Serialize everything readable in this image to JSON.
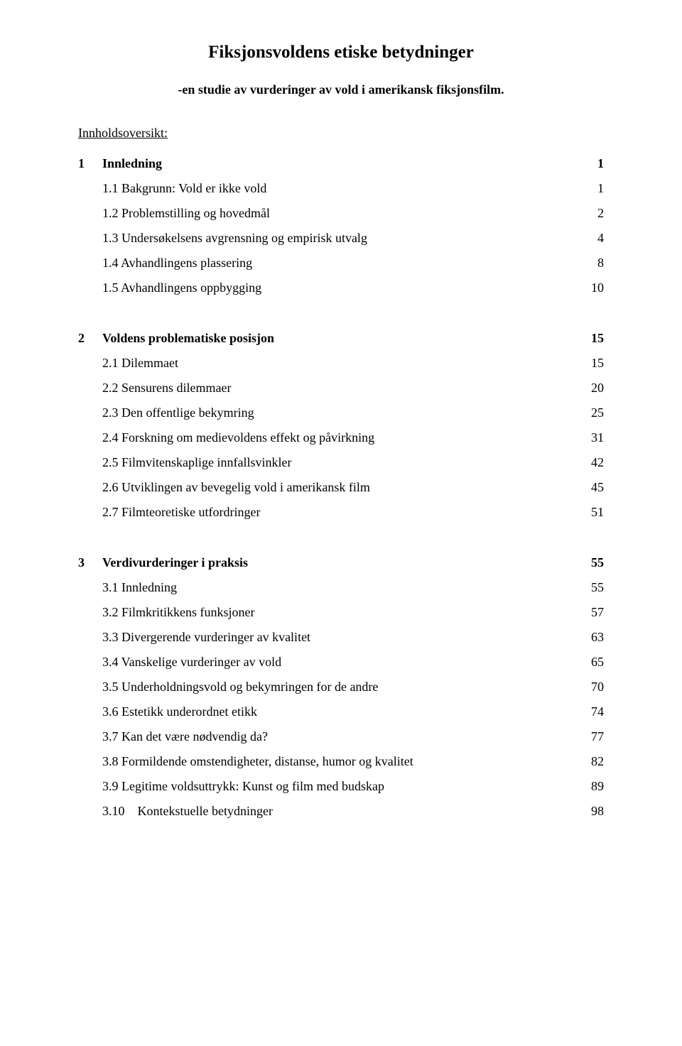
{
  "title": "Fiksjonsvoldens etiske betydninger",
  "subtitle": "-en studie av vurderinger av vold i amerikansk fiksjonsfilm.",
  "tocHeading": "Innholdsoversikt:",
  "sections": [
    {
      "num": "1",
      "label": "Innledning",
      "page": "1",
      "entries": [
        {
          "label": "1.1 Bakgrunn: Vold er ikke vold",
          "page": "1"
        },
        {
          "label": "1.2 Problemstilling og hovedmål",
          "page": "2"
        },
        {
          "label": "1.3 Undersøkelsens avgrensning og empirisk utvalg",
          "page": "4"
        },
        {
          "label": "1.4 Avhandlingens plassering",
          "page": "8"
        },
        {
          "label": "1.5 Avhandlingens oppbygging",
          "page": "10"
        }
      ]
    },
    {
      "num": "2",
      "label": "Voldens problematiske posisjon",
      "page": "15",
      "entries": [
        {
          "label": "2.1 Dilemmaet",
          "page": "15"
        },
        {
          "label": "2.2 Sensurens dilemmaer",
          "page": "20"
        },
        {
          "label": "2.3 Den offentlige bekymring",
          "page": "25"
        },
        {
          "label": "2.4 Forskning om medievoldens effekt og påvirkning",
          "page": "31"
        },
        {
          "label": "2.5 Filmvitenskaplige innfallsvinkler",
          "page": "42"
        },
        {
          "label": "2.6 Utviklingen av bevegelig vold i amerikansk film",
          "page": "45"
        },
        {
          "label": "2.7 Filmteoretiske utfordringer",
          "page": "51"
        }
      ]
    },
    {
      "num": "3",
      "label": "Verdivurderinger i praksis",
      "page": "55",
      "entries": [
        {
          "label": "3.1 Innledning",
          "page": "55"
        },
        {
          "label": "3.2 Filmkritikkens funksjoner",
          "page": "57"
        },
        {
          "label": "3.3 Divergerende vurderinger av kvalitet",
          "page": "63"
        },
        {
          "label": "3.4 Vanskelige vurderinger av vold",
          "page": "65"
        },
        {
          "label": "3.5 Underholdningsvold og bekymringen for de andre",
          "page": "70"
        },
        {
          "label": "3.6 Estetikk underordnet etikk",
          "page": "74"
        },
        {
          "label": "3.7 Kan det være nødvendig da?",
          "page": "77"
        },
        {
          "label": "3.8 Formildende omstendigheter, distanse, humor og kvalitet",
          "page": "82"
        },
        {
          "label": "3.9 Legitime voldsuttrykk: Kunst og film med budskap",
          "page": "89"
        },
        {
          "label": "3.10 Kontekstuelle betydninger",
          "page": "98"
        }
      ]
    }
  ]
}
